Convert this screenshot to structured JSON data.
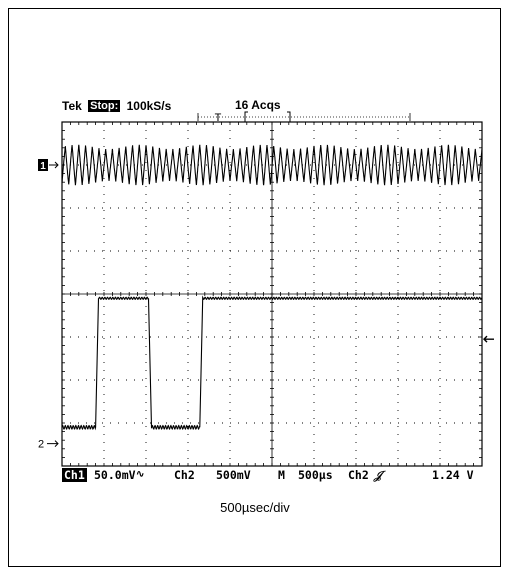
{
  "header": {
    "brand": "Tek",
    "run_state": "Stop:",
    "sample_rate": "100kS/s",
    "acquisitions": "16 Acqs",
    "trigger_marker": "T"
  },
  "readout": {
    "ch1_label": "Ch1",
    "ch1_scale": "50.0mV",
    "ch1_coupling_symbol": "∿",
    "ch2_label": "Ch2",
    "ch2_scale": "500mV",
    "timebase_label": "M",
    "timebase": "500µs",
    "trigger_source": "Ch2",
    "trigger_slope_symbol": "𝒥",
    "trigger_level": "1.24 V"
  },
  "caption": "500µsec/div",
  "markers": {
    "ch1": "1",
    "ch2": "2",
    "trigger_level_arrow": "←"
  },
  "chart_data": {
    "type": "line",
    "title": "",
    "xlabel": "500µsec/div",
    "ylabel": "",
    "x_divisions": 10,
    "y_divisions": 8,
    "time_per_div_us": 500,
    "xlim_us": [
      0,
      5000
    ],
    "grid": true,
    "series": [
      {
        "name": "Ch1",
        "scale_mV_per_div": 50.0,
        "coupling": "AC",
        "description_values": {
          "ripple_peak_to_peak_mV": 42,
          "ripple_period_us": 80,
          "offset_div": 3
        }
      },
      {
        "name": "Ch2",
        "scale_mV_per_div": 500,
        "levels_div": [
          -3.1,
          -0.1
        ],
        "low_level_offset": 0.0,
        "edges_us": [
          {
            "t": 400,
            "dir": "rise"
          },
          {
            "t": 1030,
            "dir": "fall"
          },
          {
            "t": 1640,
            "dir": "rise"
          }
        ],
        "period_us": 1240,
        "duty": 0.5
      }
    ],
    "trigger_level_V": 1.24
  }
}
